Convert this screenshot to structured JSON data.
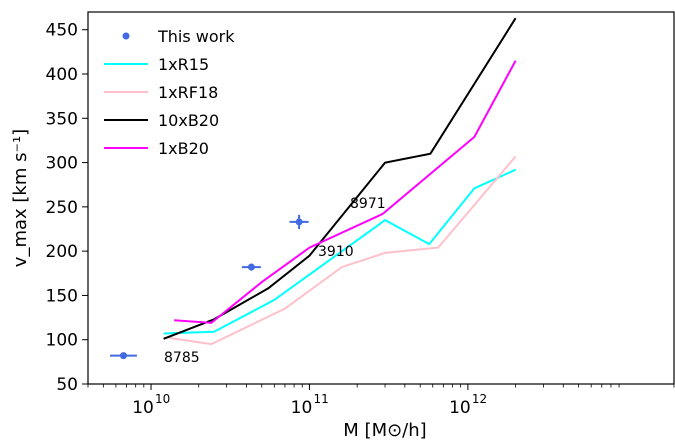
{
  "chart_data": {
    "type": "line",
    "xlabel": "M [M⊙/h]",
    "ylabel": "v_max [km s⁻¹]",
    "x_scale": "log",
    "xlim": [
      4000000000,
      20000000000000
    ],
    "ylim": [
      50,
      470
    ],
    "y_ticks": [
      50,
      100,
      150,
      200,
      250,
      300,
      350,
      400,
      450
    ],
    "x_ticks": [
      {
        "value": 10000000000,
        "label": "10",
        "exp": "10"
      },
      {
        "value": 100000000000,
        "label": "10",
        "exp": "11"
      },
      {
        "value": 1000000000000,
        "label": "10",
        "exp": "12"
      }
    ],
    "legend_position": "top-left",
    "series": [
      {
        "name": "1xR15",
        "color": "#00ffff",
        "x": [
          12000000000,
          25000000000,
          60000000000,
          300000000000,
          570000000000,
          1100000000000,
          2000000000000
        ],
        "y": [
          107,
          109,
          145,
          235,
          208,
          271,
          292
        ]
      },
      {
        "name": "1xRF18",
        "color": "#ffc0cb",
        "x": [
          13000000000,
          24000000000,
          70000000000,
          160000000000,
          300000000000,
          650000000000,
          2000000000000
        ],
        "y": [
          102,
          95,
          135,
          182,
          198,
          204,
          307
        ]
      },
      {
        "name": "10xB20",
        "color": "#000000",
        "x": [
          12000000000,
          25000000000,
          55000000000,
          100000000000,
          300000000000,
          580000000000,
          2000000000000
        ],
        "y": [
          101,
          123,
          158,
          195,
          300,
          310,
          463
        ]
      },
      {
        "name": "1xB20",
        "color": "#ff00ff",
        "x": [
          14000000000,
          24000000000,
          50000000000,
          100000000000,
          290000000000,
          1100000000000,
          2000000000000
        ],
        "y": [
          122,
          119,
          165,
          204,
          242,
          329,
          415
        ]
      }
    ],
    "points": {
      "name": "This work",
      "color": "#4169e1",
      "data": [
        {
          "label": "8785",
          "x": 6700000000,
          "y": 82,
          "xerr": [
            0.085,
            0.085
          ],
          "yerr": 0
        },
        {
          "label": "3910",
          "x": 43000000000,
          "y": 182,
          "xerr": [
            0.06,
            0.06
          ],
          "yerr": 4
        },
        {
          "label": "8971",
          "x": 86000000000,
          "y": 233,
          "xerr": [
            0.06,
            0.06
          ],
          "yerr": 8
        }
      ]
    }
  }
}
